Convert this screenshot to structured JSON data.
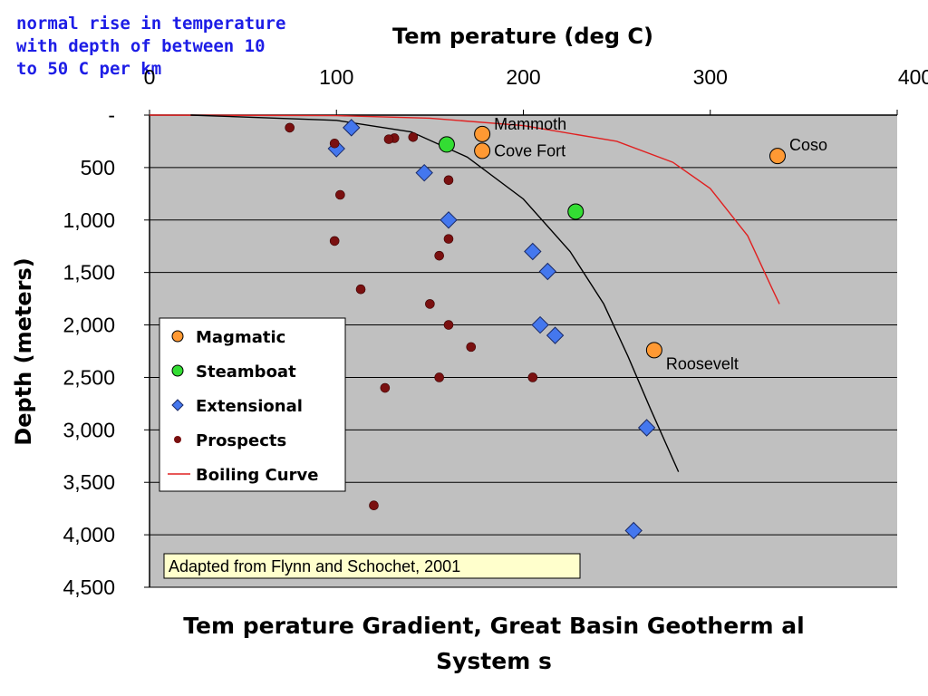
{
  "note": "normal rise in temperature\nwith depth of between 10\nto 50 C per km",
  "chart_data": {
    "type": "scatter",
    "title": "Tem perature Gradient, Great Basin Geotherm al",
    "title_line2": "System s",
    "xlabel": "Tem perature (deg C)",
    "ylabel": "Depth (meters)",
    "xlim": [
      0,
      400
    ],
    "ylim": [
      0,
      4500
    ],
    "y_inverted": true,
    "x_axis_position": "top",
    "xticks": [
      "0",
      "100",
      "200",
      "300",
      "400"
    ],
    "yticks": [
      "-",
      "500",
      "1,000",
      "1,500",
      "2,000",
      "2,500",
      "3,000",
      "3,500",
      "4,000",
      "4,500"
    ],
    "grid": "horizontal",
    "plot_background": "#c0c0c0",
    "legend_position": "left-middle",
    "series": [
      {
        "name": "Magmatic",
        "marker": "circle",
        "color": "#ff9933",
        "points": [
          {
            "x": 178,
            "y": 180,
            "label": "Mammoth"
          },
          {
            "x": 178,
            "y": 340,
            "label": "Cove Fort"
          },
          {
            "x": 336,
            "y": 390,
            "label": "Coso"
          },
          {
            "x": 270,
            "y": 2240,
            "label": "Roosevelt"
          }
        ]
      },
      {
        "name": "Steamboat",
        "marker": "circle",
        "color": "#33dd33",
        "points": [
          {
            "x": 159,
            "y": 280
          },
          {
            "x": 228,
            "y": 920
          }
        ]
      },
      {
        "name": "Extensional",
        "marker": "diamond",
        "color": "#4477ee",
        "points": [
          {
            "x": 108,
            "y": 120
          },
          {
            "x": 100,
            "y": 320
          },
          {
            "x": 147,
            "y": 550
          },
          {
            "x": 160,
            "y": 1000
          },
          {
            "x": 205,
            "y": 1300
          },
          {
            "x": 213,
            "y": 1490
          },
          {
            "x": 209,
            "y": 2000
          },
          {
            "x": 217,
            "y": 2100
          },
          {
            "x": 266,
            "y": 2980
          },
          {
            "x": 259,
            "y": 3960
          }
        ]
      },
      {
        "name": "Prospects",
        "marker": "dot",
        "color": "#7a1010",
        "points": [
          {
            "x": 75,
            "y": 120
          },
          {
            "x": 131,
            "y": 220
          },
          {
            "x": 141,
            "y": 210
          },
          {
            "x": 128,
            "y": 230
          },
          {
            "x": 99,
            "y": 270
          },
          {
            "x": 102,
            "y": 760
          },
          {
            "x": 160,
            "y": 620
          },
          {
            "x": 160,
            "y": 1180
          },
          {
            "x": 99,
            "y": 1200
          },
          {
            "x": 155,
            "y": 1340
          },
          {
            "x": 113,
            "y": 1660
          },
          {
            "x": 150,
            "y": 1800
          },
          {
            "x": 160,
            "y": 2000
          },
          {
            "x": 172,
            "y": 2210
          },
          {
            "x": 155,
            "y": 2500
          },
          {
            "x": 205,
            "y": 2500
          },
          {
            "x": 126,
            "y": 2600
          },
          {
            "x": 120,
            "y": 3720
          }
        ]
      },
      {
        "name": "Boiling Curve",
        "type": "line",
        "color": "#e02020",
        "points": [
          {
            "x": 0,
            "y": 0
          },
          {
            "x": 100,
            "y": 5
          },
          {
            "x": 150,
            "y": 30
          },
          {
            "x": 200,
            "y": 100
          },
          {
            "x": 250,
            "y": 250
          },
          {
            "x": 280,
            "y": 450
          },
          {
            "x": 300,
            "y": 700
          },
          {
            "x": 320,
            "y": 1150
          },
          {
            "x": 333,
            "y": 1650
          },
          {
            "x": 337,
            "y": 1800
          }
        ]
      },
      {
        "name": "",
        "type": "line",
        "color": "#000000",
        "points": [
          {
            "x": 22,
            "y": 0
          },
          {
            "x": 100,
            "y": 50
          },
          {
            "x": 140,
            "y": 160
          },
          {
            "x": 170,
            "y": 400
          },
          {
            "x": 200,
            "y": 800
          },
          {
            "x": 225,
            "y": 1300
          },
          {
            "x": 243,
            "y": 1800
          },
          {
            "x": 256,
            "y": 2300
          },
          {
            "x": 268,
            "y": 2800
          },
          {
            "x": 278,
            "y": 3200
          },
          {
            "x": 283,
            "y": 3400
          }
        ]
      }
    ],
    "source_note": "Adapted from Flynn and Schochet, 2001"
  }
}
